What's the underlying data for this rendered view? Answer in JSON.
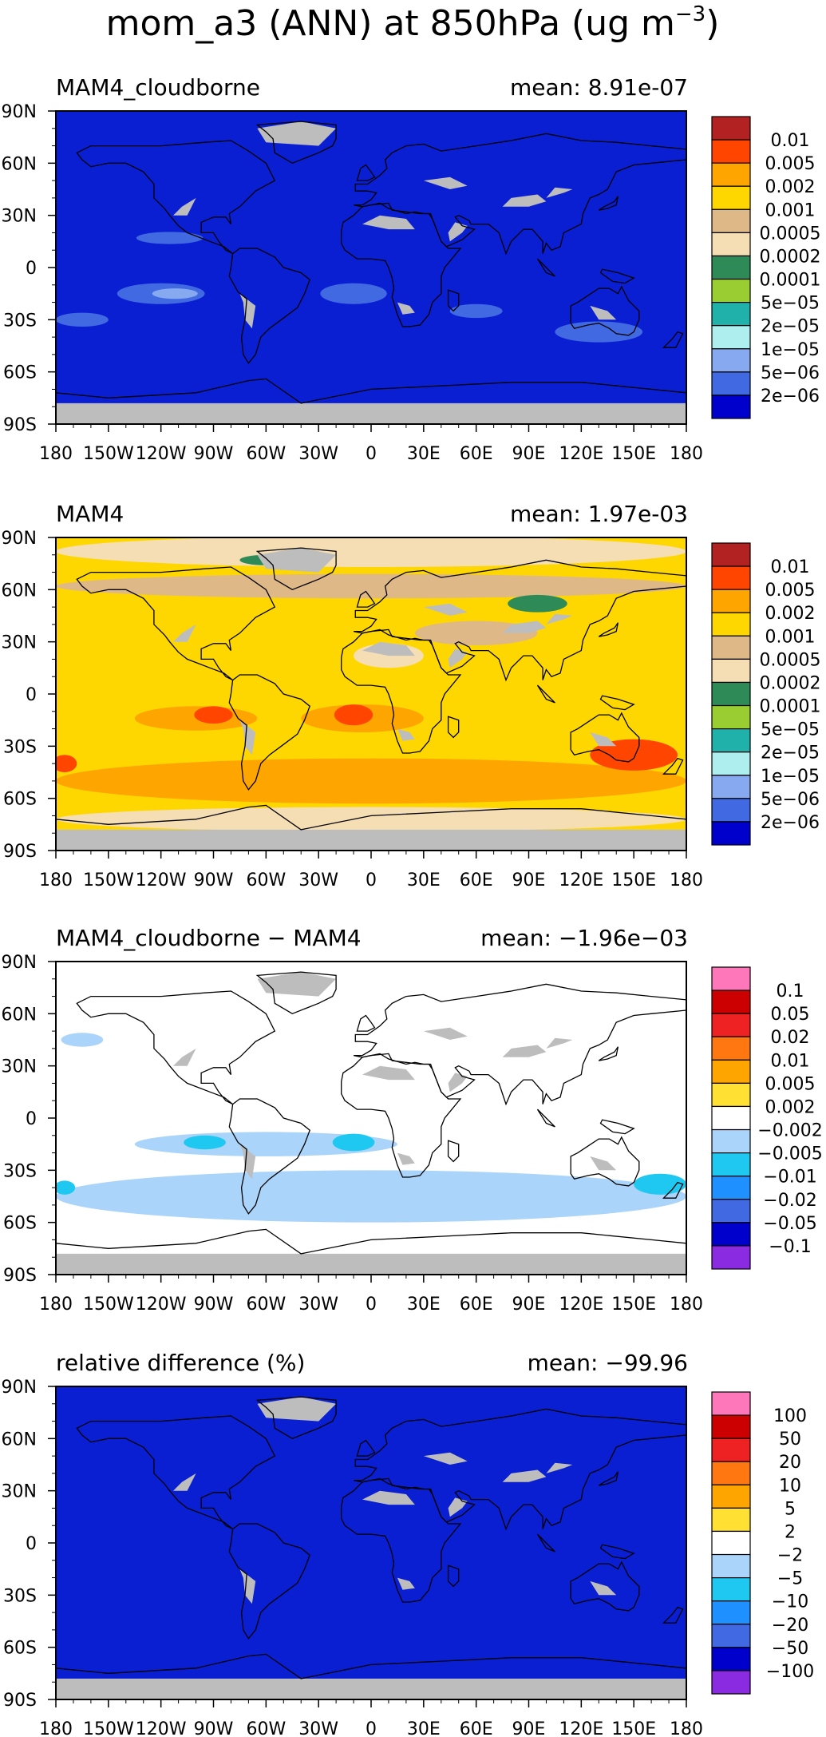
{
  "title_main": "mom_a3 (ANN) at 850hPa (ug m",
  "title_exp": "−3",
  "title_close": ")",
  "colors": {
    "land_missing": "#bdbdbd",
    "coast": "#000000",
    "frame": "#000000"
  },
  "chart_data": [
    {
      "type": "heatmap",
      "title": "MAM4_cloudborne",
      "mean_label": "mean: 8.91e-07",
      "x_ticks": [
        "180",
        "150W",
        "120W",
        "90W",
        "60W",
        "30W",
        "0",
        "30E",
        "60E",
        "90E",
        "120E",
        "150E",
        "180"
      ],
      "y_ticks": [
        "90N",
        "60N",
        "30N",
        "0",
        "30S",
        "60S",
        "90S"
      ],
      "xlim": [
        -180,
        180
      ],
      "ylim": [
        -90,
        90
      ],
      "legend_labels": [
        "0.01",
        "0.005",
        "0.002",
        "0.001",
        "0.0005",
        "0.0002",
        "0.0001",
        "5e−05",
        "2e−05",
        "1e−05",
        "5e−06",
        "2e−06"
      ],
      "legend_colors": [
        "#b22222",
        "#ff4500",
        "#ffa500",
        "#ffd700",
        "#deb887",
        "#f5deb3",
        "#2e8b57",
        "#9acd32",
        "#20b2aa",
        "#afeeee",
        "#87a9f0",
        "#4169e1",
        "#0000cd"
      ],
      "background_color": "#0a1ed2",
      "features": [
        {
          "lon": -120,
          "lat": -15,
          "w": 50,
          "h": 12,
          "color": "#4169e1"
        },
        {
          "lon": -112,
          "lat": -15,
          "w": 26,
          "h": 6,
          "color": "#87a9f0"
        },
        {
          "lon": -10,
          "lat": -15,
          "w": 38,
          "h": 12,
          "color": "#4169e1"
        },
        {
          "lon": -115,
          "lat": 17,
          "w": 38,
          "h": 7,
          "color": "#4169e1"
        },
        {
          "lon": 130,
          "lat": -37,
          "w": 50,
          "h": 12,
          "color": "#4169e1"
        },
        {
          "lon": -165,
          "lat": -30,
          "w": 30,
          "h": 8,
          "color": "#4169e1"
        },
        {
          "lon": 60,
          "lat": -25,
          "w": 30,
          "h": 8,
          "color": "#4169e1"
        }
      ]
    },
    {
      "type": "heatmap",
      "title": "MAM4",
      "mean_label": "mean: 1.97e-03",
      "x_ticks": [
        "180",
        "150W",
        "120W",
        "90W",
        "60W",
        "30W",
        "0",
        "30E",
        "60E",
        "90E",
        "120E",
        "150E",
        "180"
      ],
      "y_ticks": [
        "90N",
        "60N",
        "30N",
        "0",
        "30S",
        "60S",
        "90S"
      ],
      "xlim": [
        -180,
        180
      ],
      "ylim": [
        -90,
        90
      ],
      "legend_labels": [
        "0.01",
        "0.005",
        "0.002",
        "0.001",
        "0.0005",
        "0.0002",
        "0.0001",
        "5e−05",
        "2e−05",
        "1e−05",
        "5e−06",
        "2e−06"
      ],
      "legend_colors": [
        "#b22222",
        "#ff4500",
        "#ffa500",
        "#ffd700",
        "#deb887",
        "#f5deb3",
        "#2e8b57",
        "#9acd32",
        "#20b2aa",
        "#afeeee",
        "#87a9f0",
        "#4169e1",
        "#0000cd"
      ],
      "background_color": "#ffd700",
      "features": [
        {
          "lon": 0,
          "lat": 82,
          "w": 360,
          "h": 18,
          "color": "#f5deb3"
        },
        {
          "lon": 0,
          "lat": 62,
          "w": 360,
          "h": 14,
          "color": "#deb887"
        },
        {
          "lon": 60,
          "lat": 35,
          "w": 70,
          "h": 14,
          "color": "#deb887"
        },
        {
          "lon": 10,
          "lat": 22,
          "w": 40,
          "h": 14,
          "color": "#f5deb3"
        },
        {
          "lon": 95,
          "lat": 52,
          "w": 34,
          "h": 10,
          "color": "#2e8b57"
        },
        {
          "lon": -60,
          "lat": 77,
          "w": 30,
          "h": 6,
          "color": "#2e8b57"
        },
        {
          "lon": 0,
          "lat": -50,
          "w": 360,
          "h": 26,
          "color": "#ffa500"
        },
        {
          "lon": -100,
          "lat": -14,
          "w": 70,
          "h": 14,
          "color": "#ffa500"
        },
        {
          "lon": -5,
          "lat": -14,
          "w": 70,
          "h": 16,
          "color": "#ffa500"
        },
        {
          "lon": -90,
          "lat": -12,
          "w": 22,
          "h": 10,
          "color": "#ff4500"
        },
        {
          "lon": -10,
          "lat": -12,
          "w": 22,
          "h": 12,
          "color": "#ff4500"
        },
        {
          "lon": 150,
          "lat": -35,
          "w": 50,
          "h": 18,
          "color": "#ff4500"
        },
        {
          "lon": -175,
          "lat": -40,
          "w": 14,
          "h": 10,
          "color": "#ff4500"
        },
        {
          "lon": 0,
          "lat": -72,
          "w": 360,
          "h": 14,
          "color": "#f5deb3"
        }
      ]
    },
    {
      "type": "heatmap",
      "title": "MAM4_cloudborne − MAM4",
      "mean_label": "mean: −1.96e−03",
      "x_ticks": [
        "180",
        "150W",
        "120W",
        "90W",
        "60W",
        "30W",
        "0",
        "30E",
        "60E",
        "90E",
        "120E",
        "150E",
        "180"
      ],
      "y_ticks": [
        "90N",
        "60N",
        "30N",
        "0",
        "30S",
        "60S",
        "90S"
      ],
      "xlim": [
        -180,
        180
      ],
      "ylim": [
        -90,
        90
      ],
      "legend_labels": [
        "0.1",
        "0.05",
        "0.02",
        "0.01",
        "0.005",
        "0.002",
        "−0.002",
        "−0.005",
        "−0.01",
        "−0.02",
        "−0.05",
        "−0.1"
      ],
      "legend_colors": [
        "#ff77bb",
        "#cc0000",
        "#ee2222",
        "#ff7711",
        "#ffa500",
        "#ffe033",
        "#ffffff",
        "#aad4fa",
        "#1ec8f0",
        "#1e90ff",
        "#4169e1",
        "#0000cd",
        "#8a2be2"
      ],
      "background_color": "#ffffff",
      "features": [
        {
          "lon": 0,
          "lat": -45,
          "w": 360,
          "h": 30,
          "color": "#aad4fa"
        },
        {
          "lon": -60,
          "lat": -15,
          "w": 150,
          "h": 14,
          "color": "#aad4fa"
        },
        {
          "lon": -95,
          "lat": -14,
          "w": 24,
          "h": 8,
          "color": "#1ec8f0"
        },
        {
          "lon": -10,
          "lat": -14,
          "w": 24,
          "h": 10,
          "color": "#1ec8f0"
        },
        {
          "lon": 165,
          "lat": -38,
          "w": 30,
          "h": 12,
          "color": "#1ec8f0"
        },
        {
          "lon": -175,
          "lat": -40,
          "w": 12,
          "h": 8,
          "color": "#1ec8f0"
        },
        {
          "lon": -165,
          "lat": 45,
          "w": 24,
          "h": 8,
          "color": "#aad4fa"
        }
      ]
    },
    {
      "type": "heatmap",
      "title": "relative difference (%)",
      "mean_label": "mean: −99.96",
      "x_ticks": [
        "180",
        "150W",
        "120W",
        "90W",
        "60W",
        "30W",
        "0",
        "30E",
        "60E",
        "90E",
        "120E",
        "150E",
        "180"
      ],
      "y_ticks": [
        "90N",
        "60N",
        "30N",
        "0",
        "30S",
        "60S",
        "90S"
      ],
      "xlim": [
        -180,
        180
      ],
      "ylim": [
        -90,
        90
      ],
      "legend_labels": [
        "100",
        "50",
        "20",
        "10",
        "5",
        "2",
        "−2",
        "−5",
        "−10",
        "−20",
        "−50",
        "−100"
      ],
      "legend_colors": [
        "#ff77bb",
        "#cc0000",
        "#ee2222",
        "#ff7711",
        "#ffa500",
        "#ffe033",
        "#ffffff",
        "#aad4fa",
        "#1ec8f0",
        "#1e90ff",
        "#4169e1",
        "#0000cd",
        "#8a2be2"
      ],
      "background_color": "#0a1ed2",
      "features": []
    }
  ]
}
